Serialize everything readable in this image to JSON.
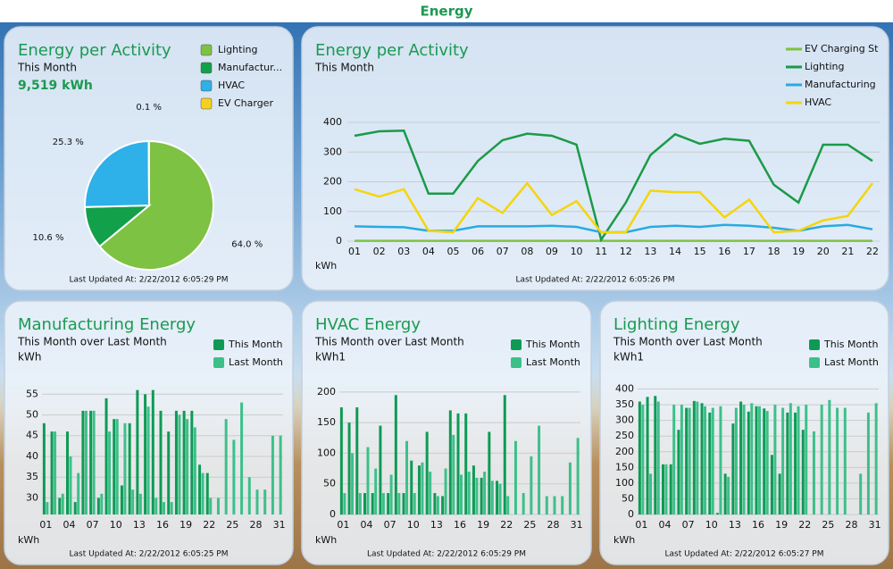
{
  "header": {
    "title": "Energy"
  },
  "chart_data": [
    {
      "type": "pie",
      "title": "Energy per Activity",
      "subtitle": "This Month",
      "total_label": "9,519 kWh",
      "categories": [
        "Lighting",
        "Manufactur...",
        "HVAC",
        "EV Charger"
      ],
      "values": [
        64.0,
        10.6,
        25.3,
        0.1
      ],
      "value_labels": [
        "64.0 %",
        "10.6 %",
        "25.3 %",
        "0.1 %"
      ],
      "colors": [
        "#7dc242",
        "#13a04a",
        "#2eb0e8",
        "#f5d020"
      ],
      "footer": "Last Updated At: 2/22/2012 6:05:29 PM"
    },
    {
      "type": "line",
      "title": "Energy per Activity",
      "subtitle": "This Month",
      "ylabel": "kWh",
      "categories": [
        "01",
        "02",
        "03",
        "04",
        "05",
        "06",
        "07",
        "08",
        "09",
        "10",
        "11",
        "12",
        "13",
        "14",
        "15",
        "16",
        "17",
        "18",
        "19",
        "20",
        "21",
        "22"
      ],
      "series": [
        {
          "name": "EV Charging St",
          "color": "#7dc242",
          "values": [
            1,
            1,
            1,
            1,
            1,
            1,
            1,
            1,
            1,
            1,
            1,
            1,
            1,
            1,
            1,
            1,
            1,
            1,
            1,
            1,
            1,
            1
          ]
        },
        {
          "name": "Lighting",
          "color": "#1a9a48",
          "values": [
            355,
            370,
            372,
            160,
            160,
            270,
            340,
            362,
            355,
            325,
            5,
            130,
            290,
            360,
            328,
            345,
            338,
            190,
            130,
            325,
            325,
            270
          ]
        },
        {
          "name": "Manufacturing",
          "color": "#29aae1",
          "values": [
            50,
            48,
            47,
            35,
            35,
            50,
            50,
            50,
            52,
            48,
            30,
            30,
            48,
            52,
            48,
            55,
            52,
            45,
            35,
            50,
            55,
            40
          ]
        },
        {
          "name": "HVAC",
          "color": "#f5d50a",
          "values": [
            175,
            150,
            175,
            35,
            30,
            145,
            95,
            195,
            88,
            135,
            30,
            30,
            170,
            165,
            165,
            80,
            140,
            30,
            35,
            70,
            85,
            195
          ]
        }
      ],
      "ylim": [
        0,
        400
      ],
      "yticks": [
        0,
        100,
        200,
        300,
        400
      ],
      "grid": true,
      "footer": "Last Updated At: 2/22/2012 6:05:26 PM"
    },
    {
      "type": "bar",
      "title": "Manufacturing Energy",
      "subtitle": "This Month over Last Month",
      "unit": "kWh",
      "ylabel": "kWh",
      "categories": [
        "01",
        null,
        null,
        "04",
        null,
        null,
        "07",
        null,
        null,
        "10",
        null,
        null,
        "13",
        null,
        null,
        "16",
        null,
        null,
        "19",
        null,
        null,
        "22",
        null,
        null,
        "25",
        null,
        null,
        "28",
        null,
        null,
        "31"
      ],
      "series": [
        {
          "name": "This Month",
          "color": "#0e9a55",
          "values": [
            48,
            46,
            30,
            46,
            29,
            51,
            51,
            30,
            54,
            49,
            33,
            48,
            56,
            55,
            56,
            51,
            46,
            51,
            51,
            51,
            38,
            36,
            null,
            null,
            null,
            null,
            null,
            null,
            null,
            null,
            null
          ]
        },
        {
          "name": "Last Month",
          "color": "#3cc08a",
          "values": [
            29,
            46,
            31,
            40,
            36,
            51,
            51,
            31,
            46,
            49,
            48,
            32,
            31,
            52,
            30,
            29,
            29,
            50,
            49,
            47,
            36,
            30,
            30,
            49,
            44,
            53,
            35,
            32,
            32,
            45,
            45
          ]
        }
      ],
      "ylim": [
        26,
        57
      ],
      "yticks": [
        30,
        35,
        40,
        45,
        50,
        55
      ],
      "grid": true,
      "footer": "Last Updated At: 2/22/2012 6:05:25 PM"
    },
    {
      "type": "bar",
      "title": "HVAC Energy",
      "subtitle": "This Month over Last Month",
      "unit": "kWh1",
      "ylabel": "kWh",
      "categories": [
        "01",
        null,
        null,
        "04",
        null,
        null,
        "07",
        null,
        null,
        "10",
        null,
        null,
        "13",
        null,
        null,
        "16",
        null,
        null,
        "19",
        null,
        null,
        "22",
        null,
        null,
        "25",
        null,
        null,
        "28",
        null,
        null,
        "31"
      ],
      "series": [
        {
          "name": "This Month",
          "color": "#0e9a55",
          "values": [
            175,
            150,
            175,
            35,
            35,
            145,
            35,
            195,
            35,
            88,
            80,
            135,
            35,
            30,
            170,
            165,
            165,
            80,
            60,
            135,
            55,
            195,
            null,
            null,
            null,
            null,
            null,
            null,
            null,
            null,
            null
          ]
        },
        {
          "name": "Last Month",
          "color": "#3cc08a",
          "values": [
            35,
            100,
            35,
            110,
            75,
            35,
            65,
            35,
            120,
            35,
            85,
            70,
            30,
            75,
            130,
            65,
            70,
            60,
            70,
            55,
            50,
            30,
            120,
            35,
            95,
            145,
            30,
            30,
            30,
            85,
            125
          ]
        }
      ],
      "ylim": [
        0,
        210
      ],
      "yticks": [
        0,
        50,
        100,
        150,
        200
      ],
      "grid": true,
      "footer": "Last Updated At: 2/22/2012 6:05:29 PM"
    },
    {
      "type": "bar",
      "title": "Lighting Energy",
      "subtitle": "This Month over Last Month",
      "unit": "kWh1",
      "ylabel": "kWh",
      "categories": [
        "01",
        null,
        null,
        "04",
        null,
        null,
        "07",
        null,
        null,
        "10",
        null,
        null,
        "13",
        null,
        null,
        "16",
        null,
        null,
        "19",
        null,
        null,
        "22",
        null,
        null,
        "25",
        null,
        null,
        "28",
        null,
        null,
        "31"
      ],
      "series": [
        {
          "name": "This Month",
          "color": "#0e9a55",
          "values": [
            360,
            375,
            378,
            160,
            160,
            270,
            340,
            362,
            355,
            325,
            5,
            130,
            290,
            360,
            328,
            345,
            338,
            190,
            130,
            325,
            325,
            270,
            null,
            null,
            null,
            null,
            null,
            null,
            null,
            null,
            null
          ]
        },
        {
          "name": "Last Month",
          "color": "#3cc08a",
          "values": [
            350,
            130,
            360,
            160,
            350,
            350,
            340,
            360,
            345,
            340,
            345,
            120,
            340,
            350,
            355,
            345,
            330,
            350,
            340,
            355,
            345,
            350,
            265,
            350,
            365,
            340,
            340,
            0,
            130,
            325,
            355
          ]
        }
      ],
      "ylim": [
        0,
        410
      ],
      "yticks": [
        0,
        50,
        100,
        150,
        200,
        250,
        300,
        350,
        400
      ],
      "grid": true,
      "footer": "Last Updated At: 2/22/2012 6:05:27 PM"
    }
  ]
}
